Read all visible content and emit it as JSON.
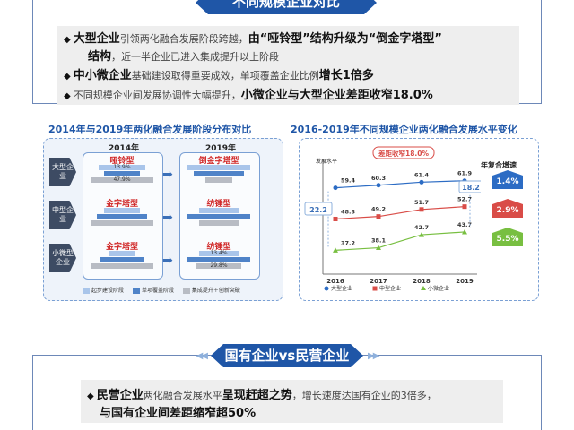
{
  "section1": {
    "title": "不同规模企业对比",
    "bullets": [
      {
        "b1": "大型企业",
        "t1": "引领两化融合发展阶段跨越，",
        "b2": "由“哑铃型”结构升级为“倒金字塔型”"
      },
      {
        "b1": "结构",
        "t1": "，近一半企业已进入集成提升以上阶段"
      },
      {
        "b1": "中小微企业",
        "t1": "基础建设取得重要成效，单项覆盖企业比例",
        "b2": "增长1倍多"
      },
      {
        "t1": "不同规模企业间发展协调性大幅提升，",
        "b2": "小微企业与大型企业差距收窄18.0%"
      }
    ]
  },
  "left_chart": {
    "title": "2014年与2019年两化融合发展阶段分布对比",
    "col_2014": "2014年",
    "col_2019": "2019年",
    "rows": [
      {
        "tag": "大型企业",
        "shape_2014": "哑铃型",
        "shape_2019": "倒金字塔型",
        "bars_2014": [
          "13.9%",
          "",
          "47.9%"
        ],
        "bars_2019": [
          "",
          "",
          ""
        ]
      },
      {
        "tag": "中型企业",
        "shape_2014": "金字塔型",
        "shape_2019": "纺锤型",
        "bars_2014": [
          "",
          "",
          ""
        ],
        "bars_2019": [
          "",
          "",
          ""
        ]
      },
      {
        "tag": "小微型企业",
        "shape_2014": "金字塔型",
        "shape_2019": "纺锤型",
        "bars_2014": [
          "",
          "",
          ""
        ],
        "bars_2019": [
          "13.4%",
          "",
          "29.8%"
        ]
      }
    ],
    "legend": [
      "起步建设阶段",
      "单项覆盖阶段",
      "集成提升＋创新突破"
    ],
    "colors": [
      "#a9c5ea",
      "#4f83c8",
      "#b8bcc4"
    ]
  },
  "chart_data": {
    "type": "line",
    "title": "2016-2019年不同规模企业两化融合发展水平变化",
    "ylabel": "发展水平",
    "x": [
      "2016",
      "2017",
      "2018",
      "2019"
    ],
    "ylim": [
      30,
      65
    ],
    "series": [
      {
        "name": "大型企业",
        "values": [
          59.4,
          60.3,
          61.4,
          61.9
        ],
        "color": "#2c6cc4",
        "marker": "circle"
      },
      {
        "name": "中型企业",
        "values": [
          48.3,
          49.2,
          51.7,
          52.7
        ],
        "color": "#d94c47",
        "marker": "square"
      },
      {
        "name": "小微企业",
        "values": [
          37.2,
          38.1,
          42.7,
          43.7
        ],
        "color": "#78bf41",
        "marker": "triangle"
      }
    ],
    "annotations": {
      "gap_2016": "22.2",
      "gap_2019": "18.2",
      "callout": "差距收窄18.0%"
    },
    "growth": {
      "title": "年复合增速",
      "values": [
        "1.4%",
        "2.9%",
        "5.5%"
      ]
    }
  },
  "section2": {
    "title": "国有企业vs民营企业",
    "line1": {
      "b1": "民营企业",
      "t1": "两化融合发展水平",
      "b2": "呈现赶超之势",
      "t2": "，增长速度达国有企业的3倍多，"
    },
    "line2": "与国有企业间差距缩窄超50%"
  }
}
